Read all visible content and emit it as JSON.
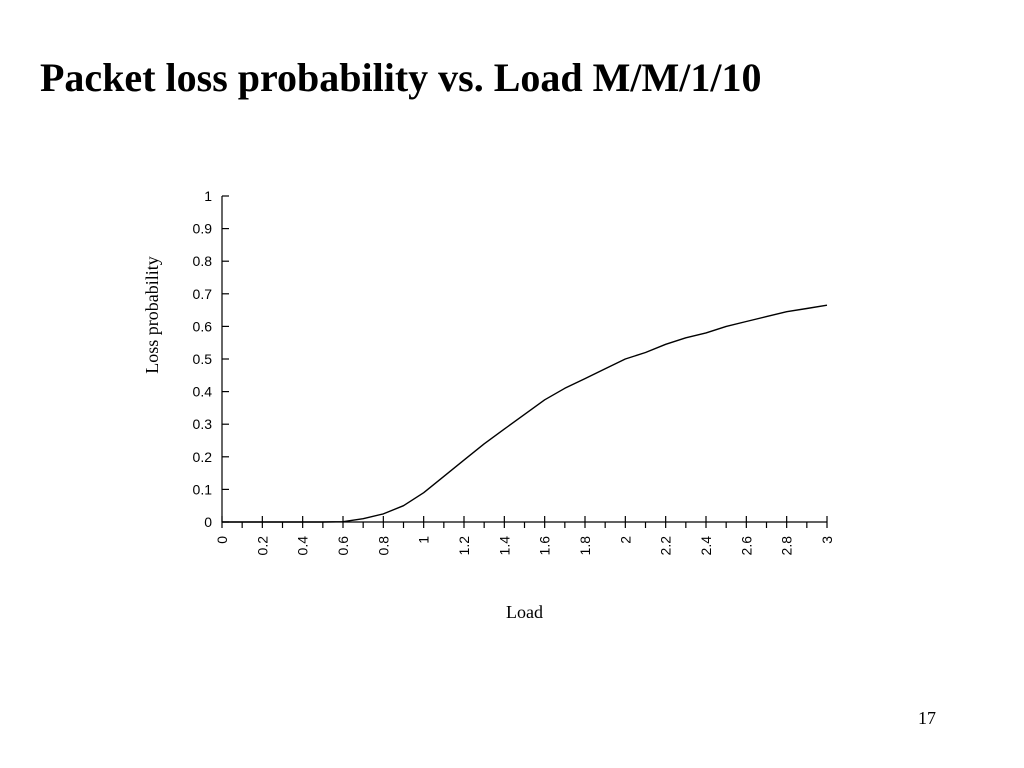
{
  "slide": {
    "title": "Packet loss probability vs. Load M/M/1/10",
    "page_number": "17"
  },
  "chart_data": {
    "type": "line",
    "title": "",
    "xlabel": "Load",
    "ylabel": "Loss probability",
    "xlim": [
      0,
      3
    ],
    "ylim": [
      0,
      1
    ],
    "x_ticks_major": [
      "0",
      "0.2",
      "0.4",
      "0.6",
      "0.8",
      "1",
      "1.2",
      "1.4",
      "1.6",
      "1.8",
      "2",
      "2.2",
      "2.4",
      "2.6",
      "2.8",
      "3"
    ],
    "x_ticks_minor": [
      0.1,
      0.3,
      0.5,
      0.7,
      0.9,
      1.1,
      1.3,
      1.5,
      1.7,
      1.9,
      2.1,
      2.3,
      2.5,
      2.7,
      2.9
    ],
    "y_ticks": [
      "0",
      "0.1",
      "0.2",
      "0.3",
      "0.4",
      "0.5",
      "0.6",
      "0.7",
      "0.8",
      "0.9",
      "1"
    ],
    "grid": false,
    "legend": "none",
    "line_color": "#000000",
    "series": [
      {
        "x": [
          0,
          0.1,
          0.2,
          0.3,
          0.4,
          0.5,
          0.6,
          0.7,
          0.8,
          0.9,
          1.0,
          1.1,
          1.2,
          1.3,
          1.4,
          1.5,
          1.6,
          1.7,
          1.8,
          1.9,
          2.0,
          2.1,
          2.2,
          2.3,
          2.4,
          2.5,
          2.6,
          2.7,
          2.8,
          2.9,
          3.0
        ],
        "y": [
          0,
          0,
          0,
          0,
          0,
          0,
          0.001,
          0.01,
          0.025,
          0.05,
          0.09,
          0.14,
          0.19,
          0.24,
          0.285,
          0.33,
          0.375,
          0.41,
          0.44,
          0.47,
          0.5,
          0.52,
          0.545,
          0.565,
          0.58,
          0.6,
          0.615,
          0.63,
          0.645,
          0.655,
          0.665
        ]
      }
    ]
  }
}
